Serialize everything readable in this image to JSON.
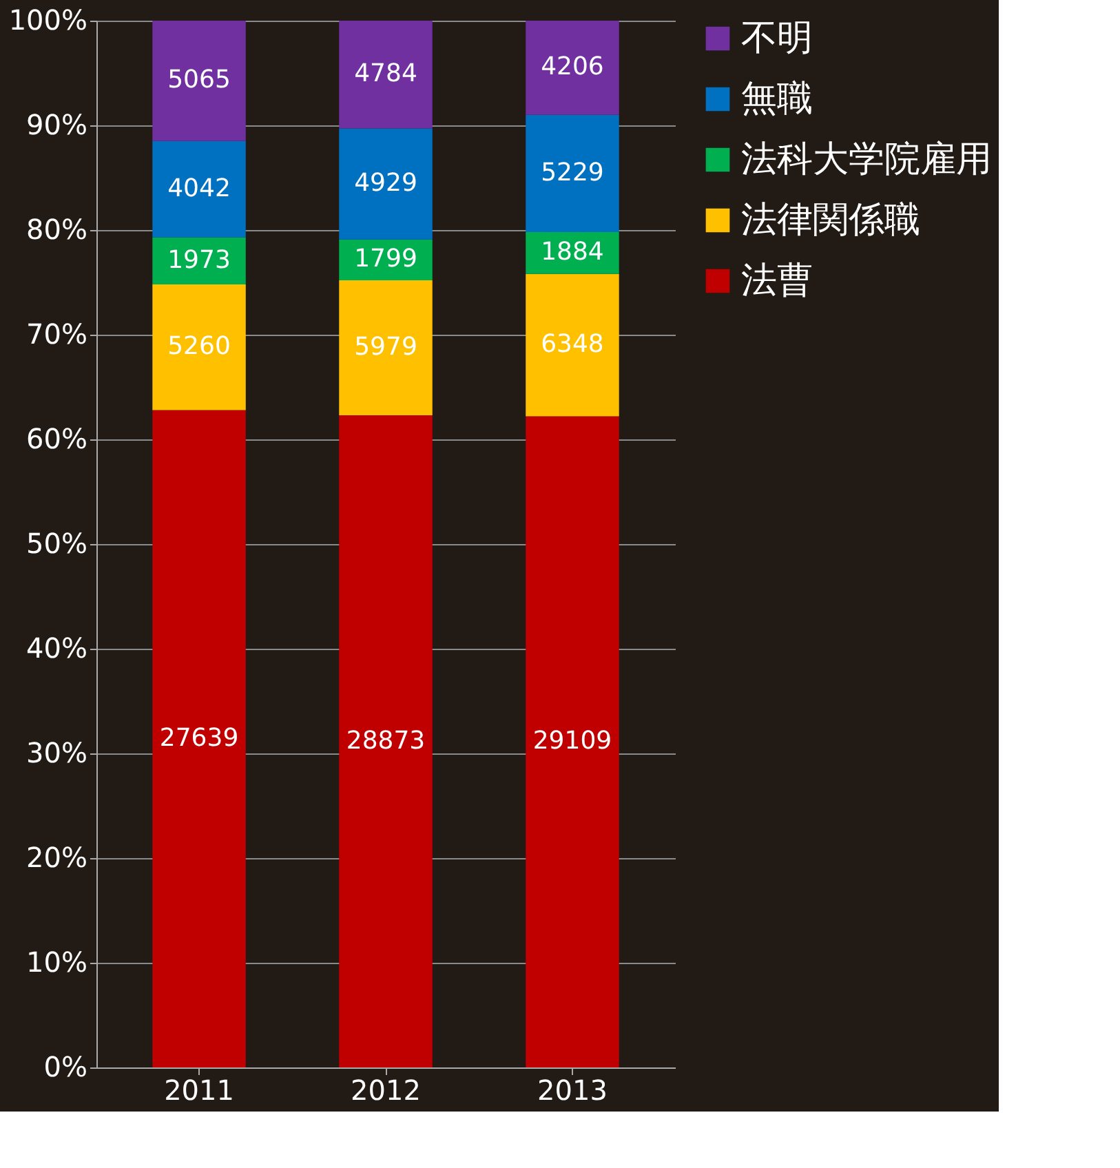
{
  "chart_data": {
    "type": "bar",
    "stacked": true,
    "categories": [
      "2011",
      "2012",
      "2013"
    ],
    "series": [
      {
        "name": "法曹",
        "color": "#c00000",
        "values": [
          62.8,
          62.3,
          62.2
        ]
      },
      {
        "name": "法律関係職",
        "color": "#ffc000",
        "values": [
          12.0,
          12.9,
          13.6
        ]
      },
      {
        "name": "法科大学院雇用",
        "color": "#00b050",
        "values": [
          4.5,
          3.9,
          4.0
        ]
      },
      {
        "name": "無職",
        "color": "#0070c0",
        "values": [
          9.2,
          10.6,
          11.2
        ]
      },
      {
        "name": "不明",
        "color": "#7030a0",
        "values": [
          11.5,
          10.3,
          9.0
        ]
      }
    ],
    "annotations": [
      "27639",
      "28873",
      "29109",
      "5260",
      "5979",
      "6348",
      "1973",
      "1799",
      "1884",
      "4042",
      "4929",
      "5229",
      "5065",
      "4784",
      "4206"
    ],
    "ylim": [
      0,
      100
    ],
    "yticks": [
      {
        "value": 0,
        "label": "0%"
      },
      {
        "value": 10,
        "label": "10%"
      },
      {
        "value": 20,
        "label": "20%"
      },
      {
        "value": 30,
        "label": "30%"
      },
      {
        "value": 40,
        "label": "40%"
      },
      {
        "value": 50,
        "label": "50%"
      },
      {
        "value": 60,
        "label": "60%"
      },
      {
        "value": 70,
        "label": "70%"
      },
      {
        "value": 80,
        "label": "80%"
      },
      {
        "value": 90,
        "label": "90%"
      },
      {
        "value": 100,
        "label": "100%"
      }
    ],
    "grid": "y",
    "legend": "right"
  }
}
